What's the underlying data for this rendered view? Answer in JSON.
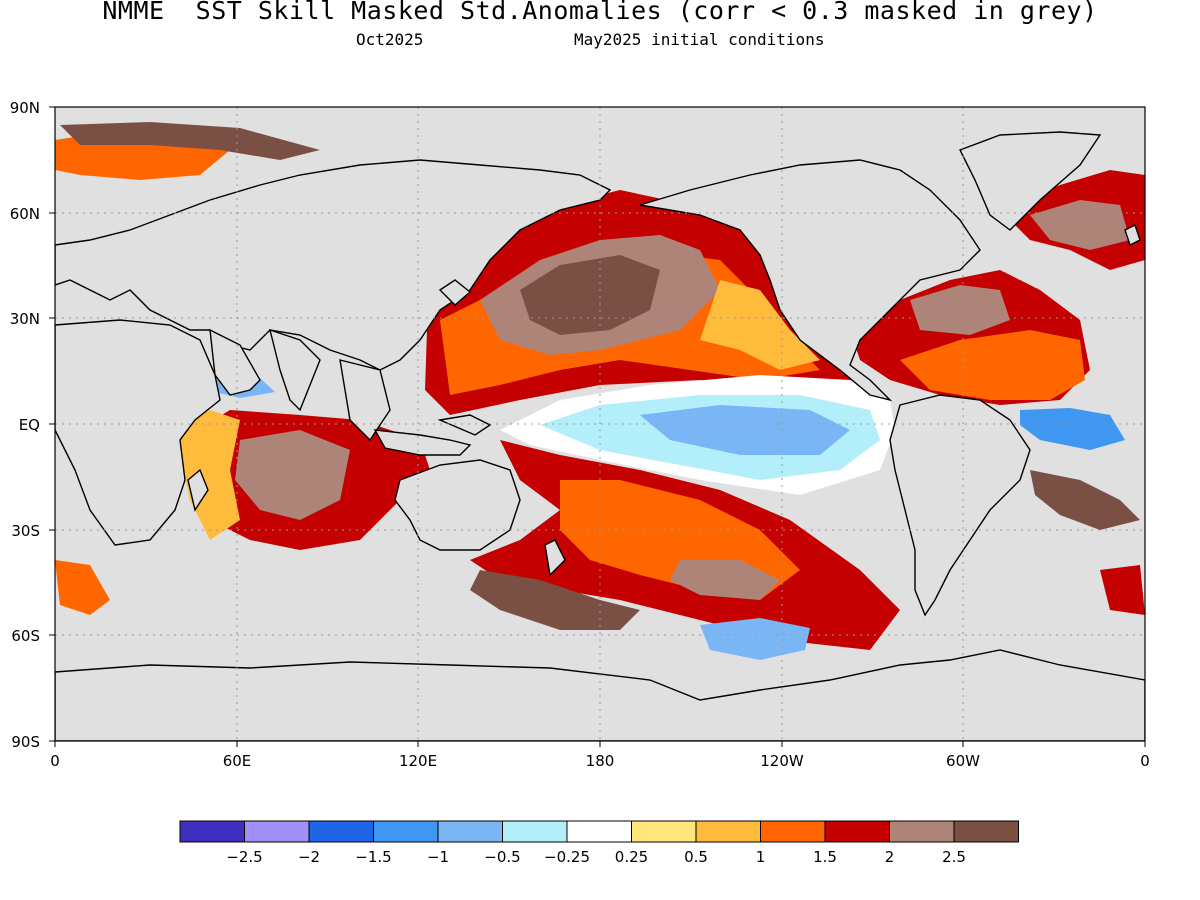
{
  "title": "NMME  SST Skill Masked Std.Anomalies (corr < 0.3 masked in grey)",
  "subtitle": {
    "target_month": "Oct2025",
    "initial_conditions": "May2025 initial conditions"
  },
  "axes": {
    "lat_labels": [
      "90N",
      "60N",
      "30N",
      "EQ",
      "30S",
      "60S",
      "90S"
    ],
    "lon_labels": [
      "0",
      "60E",
      "120E",
      "180",
      "120W",
      "60W",
      "0"
    ]
  },
  "colors": {
    "mask_grey": "#e0e0e0",
    "land": "#e0e0e0",
    "coastline": "#000000"
  },
  "legend": {
    "levels": [
      "-2.5",
      "-2",
      "-1.5",
      "-1",
      "-0.5",
      "-0.25",
      "0.25",
      "0.5",
      "1",
      "1.5",
      "2",
      "2.5"
    ],
    "colors": [
      "#3f2fbf",
      "#9f8ff7",
      "#2065e6",
      "#3f97f2",
      "#7ab6f5",
      "#b3eefb",
      "#ffffff",
      "#ffe57a",
      "#ffbb3c",
      "#ff6600",
      "#c40000",
      "#ae8479",
      "#7a4f44"
    ]
  }
}
